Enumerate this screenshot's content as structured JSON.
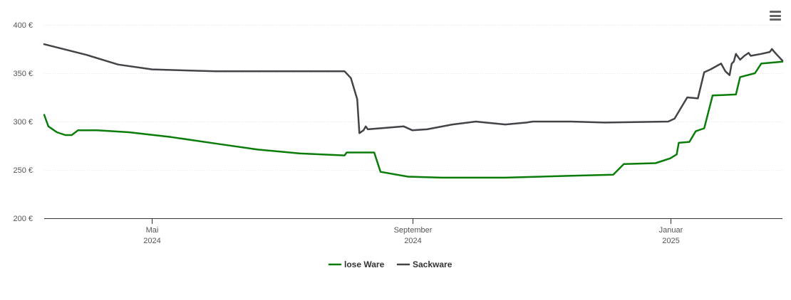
{
  "chart_data": {
    "type": "line",
    "title": "",
    "xlabel": "",
    "ylabel": "",
    "ylim": [
      200,
      400
    ],
    "yticks": [
      200,
      250,
      300,
      350,
      400
    ],
    "ytick_labels": [
      "200 €",
      "250 €",
      "300 €",
      "350 €",
      "400 €"
    ],
    "xlim": [
      "2024-03-11",
      "2025-02-23"
    ],
    "xticks": [
      {
        "date": "2024-05-01",
        "month": "Mai",
        "year": "2024"
      },
      {
        "date": "2024-09-01",
        "month": "September",
        "year": "2024"
      },
      {
        "date": "2025-01-01",
        "month": "Januar",
        "year": "2025"
      }
    ],
    "grid": true,
    "legend": "bottom-center",
    "series": [
      {
        "name": "lose Ware",
        "color": "#0a7c0a",
        "points": [
          [
            "2024-03-11",
            307
          ],
          [
            "2024-03-13",
            295
          ],
          [
            "2024-03-17",
            289
          ],
          [
            "2024-03-21",
            286
          ],
          [
            "2024-03-24",
            286
          ],
          [
            "2024-03-27",
            291
          ],
          [
            "2024-04-05",
            291
          ],
          [
            "2024-04-20",
            289
          ],
          [
            "2024-05-10",
            284
          ],
          [
            "2024-06-01",
            277
          ],
          [
            "2024-06-20",
            271
          ],
          [
            "2024-07-10",
            267
          ],
          [
            "2024-07-31",
            265
          ],
          [
            "2024-08-01",
            268
          ],
          [
            "2024-08-14",
            268
          ],
          [
            "2024-08-17",
            248
          ],
          [
            "2024-08-30",
            243
          ],
          [
            "2024-09-15",
            242
          ],
          [
            "2024-10-15",
            242
          ],
          [
            "2024-11-15",
            244
          ],
          [
            "2024-12-05",
            245
          ],
          [
            "2024-12-10",
            256
          ],
          [
            "2024-12-25",
            257
          ],
          [
            "2025-01-01",
            262
          ],
          [
            "2025-01-04",
            266
          ],
          [
            "2025-01-05",
            278
          ],
          [
            "2025-01-10",
            279
          ],
          [
            "2025-01-13",
            290
          ],
          [
            "2025-01-17",
            293
          ],
          [
            "2025-01-21",
            327
          ],
          [
            "2025-02-01",
            328
          ],
          [
            "2025-02-03",
            346
          ],
          [
            "2025-02-10",
            350
          ],
          [
            "2025-02-13",
            360
          ],
          [
            "2025-02-23",
            362
          ]
        ]
      },
      {
        "name": "Sackware",
        "color": "#434348",
        "points": [
          [
            "2024-03-11",
            380
          ],
          [
            "2024-03-31",
            369
          ],
          [
            "2024-04-15",
            359
          ],
          [
            "2024-05-01",
            354
          ],
          [
            "2024-05-31",
            352
          ],
          [
            "2024-07-31",
            352
          ],
          [
            "2024-08-03",
            345
          ],
          [
            "2024-08-06",
            323
          ],
          [
            "2024-08-07",
            288
          ],
          [
            "2024-08-09",
            291
          ],
          [
            "2024-08-10",
            295
          ],
          [
            "2024-08-11",
            292
          ],
          [
            "2024-08-28",
            295
          ],
          [
            "2024-09-01",
            291
          ],
          [
            "2024-09-08",
            292
          ],
          [
            "2024-09-20",
            297
          ],
          [
            "2024-10-01",
            300
          ],
          [
            "2024-10-15",
            297
          ],
          [
            "2024-10-25",
            299
          ],
          [
            "2024-10-28",
            300
          ],
          [
            "2024-11-15",
            300
          ],
          [
            "2024-12-01",
            299
          ],
          [
            "2024-12-31",
            300
          ],
          [
            "2025-01-03",
            303
          ],
          [
            "2025-01-09",
            325
          ],
          [
            "2025-01-14",
            324
          ],
          [
            "2025-01-17",
            351
          ],
          [
            "2025-01-20",
            354
          ],
          [
            "2025-01-25",
            360
          ],
          [
            "2025-01-27",
            352
          ],
          [
            "2025-01-29",
            348
          ],
          [
            "2025-01-30",
            360
          ],
          [
            "2025-01-31",
            362
          ],
          [
            "2025-02-01",
            370
          ],
          [
            "2025-02-03",
            364
          ],
          [
            "2025-02-05",
            368
          ],
          [
            "2025-02-07",
            371
          ],
          [
            "2025-02-08",
            368
          ],
          [
            "2025-02-13",
            370
          ],
          [
            "2025-02-17",
            372
          ],
          [
            "2025-02-18",
            375
          ],
          [
            "2025-02-20",
            370
          ],
          [
            "2025-02-23",
            363
          ]
        ]
      }
    ]
  },
  "toolbar": {
    "menu_icon": "hamburger-menu-icon"
  }
}
